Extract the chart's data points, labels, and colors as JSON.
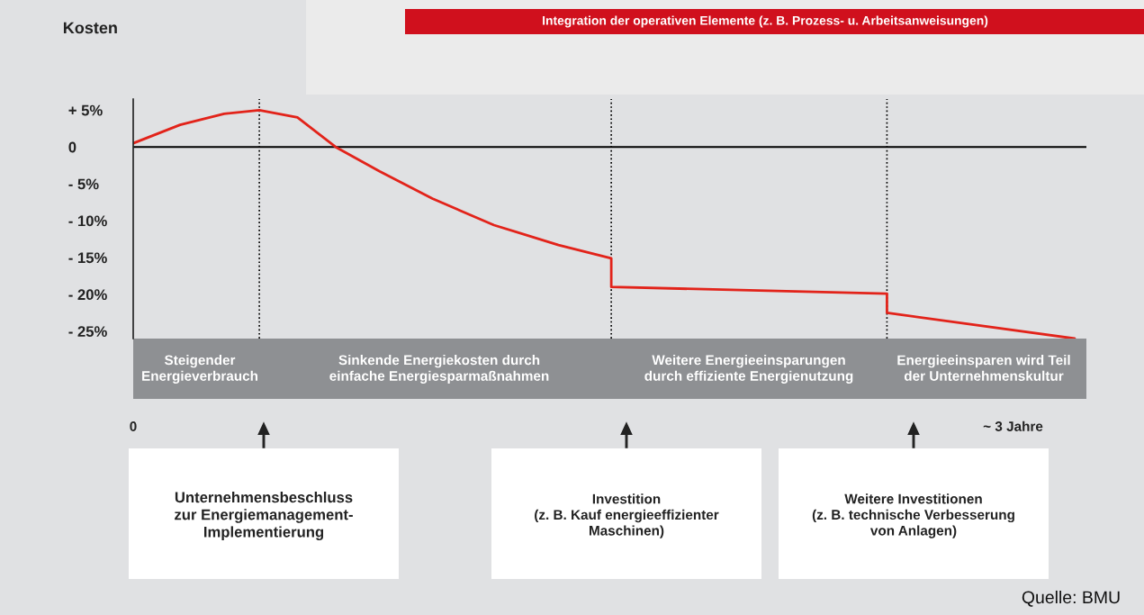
{
  "chart_data": {
    "type": "line",
    "ylabel": "Kosten",
    "x": [
      0,
      0.16,
      0.31,
      0.43,
      0.56,
      0.69,
      0.84,
      1.02,
      1.23,
      1.45,
      1.63,
      1.63,
      2.57,
      2.57,
      3.21
    ],
    "series": [
      {
        "color": "#e2231a",
        "values": [
          0.5,
          3,
          4.5,
          5,
          4,
          0,
          -3.3,
          -7,
          -10.6,
          -13.3,
          -15.1,
          -19,
          -19.9,
          -22.5,
          -26
        ]
      }
    ],
    "xlim": [
      0,
      3.25
    ],
    "xticks": [
      0,
      {
        "value": 3,
        "label": "~ 3 Jahre"
      }
    ],
    "ylim": [
      -26,
      6.5
    ],
    "yticks": [
      {
        "value": 5,
        "label": "+ 5%"
      },
      {
        "value": 0,
        "label": "0"
      },
      {
        "value": -5,
        "label": "- 5%"
      },
      {
        "value": -10,
        "label": "- 10%"
      },
      {
        "value": -15,
        "label": "- 15%"
      },
      {
        "value": -20,
        "label": "- 20%"
      },
      {
        "value": -25,
        "label": "- 25%"
      }
    ],
    "ref_lines": [
      {
        "axis": "y",
        "value": 0,
        "color": "#000000",
        "line_style": "solid"
      },
      {
        "axis": "x",
        "value": 0.43,
        "color": "#000000",
        "line_style": "dotted"
      },
      {
        "axis": "x",
        "value": 1.63,
        "color": "#000000",
        "line_style": "dotted"
      },
      {
        "axis": "x",
        "value": 2.57,
        "color": "#000000",
        "line_style": "dotted"
      }
    ],
    "marker": "none",
    "line_style": "solid",
    "grid": false,
    "legend": false,
    "annotations": [
      "Integration der operativen Elemente (z. B. Prozess- u. Arbeitsanweisungen)",
      "Steigender\nEnergieverbrauch",
      "Sinkende Energiekosten durch\neinfache Energiesparmaßnahmen",
      "Weitere Energieeinsparungen\ndurch effiziente Energienutzung",
      "Energieeinsparen wird Teil\nder Unternehmenskultur",
      "Unternehmensbeschluss\nzur Energiemanagement-\nImplementierung",
      "Investition\n(z. B. Kauf energieeffizienter\nMaschinen)",
      "Weitere Investitionen\n(z. B. technische Verbesserung\nvon Anlagen)",
      "Quelle: BMU"
    ]
  }
}
